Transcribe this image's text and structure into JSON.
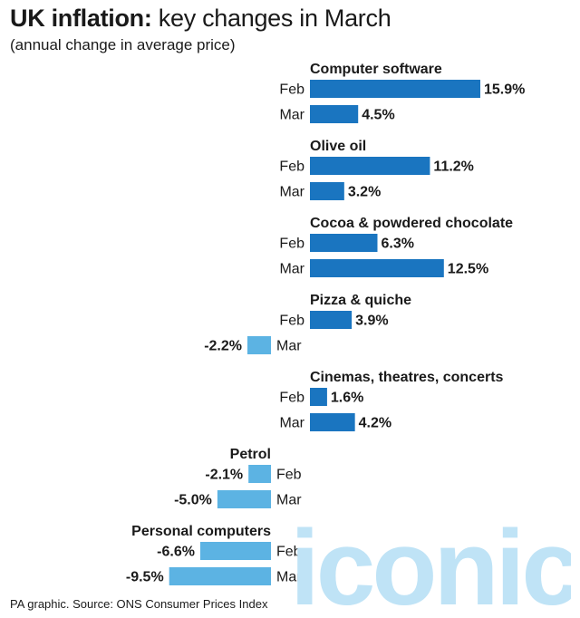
{
  "header": {
    "title_bold": "UK inflation:",
    "title_rest": " key changes in March",
    "subtitle": "(annual change in average price)"
  },
  "footer": {
    "source": "PA graphic. Source: ONS Consumer Prices Index"
  },
  "watermark": {
    "text": "iconic"
  },
  "colors": {
    "positive": "#1a75c0",
    "negative": "#5cb3e3",
    "text": "#1a1a1a",
    "watermark": "#bfe3f6"
  },
  "chart_data": {
    "type": "bar",
    "orientation": "horizontal",
    "unit": "%",
    "groups": [
      {
        "category": "Computer software",
        "bars": [
          {
            "month": "Feb",
            "value": 15.9,
            "label": "15.9%"
          },
          {
            "month": "Mar",
            "value": 4.5,
            "label": "4.5%"
          }
        ]
      },
      {
        "category": "Olive oil",
        "bars": [
          {
            "month": "Feb",
            "value": 11.2,
            "label": "11.2%"
          },
          {
            "month": "Mar",
            "value": 3.2,
            "label": "3.2%"
          }
        ]
      },
      {
        "category": "Cocoa & powdered chocolate",
        "bars": [
          {
            "month": "Feb",
            "value": 6.3,
            "label": "6.3%"
          },
          {
            "month": "Mar",
            "value": 12.5,
            "label": "12.5%"
          }
        ]
      },
      {
        "category": "Pizza & quiche",
        "bars": [
          {
            "month": "Feb",
            "value": 3.9,
            "label": "3.9%"
          },
          {
            "month": "Mar",
            "value": -2.2,
            "label": "-2.2%"
          }
        ]
      },
      {
        "category": "Cinemas, theatres, concerts",
        "bars": [
          {
            "month": "Feb",
            "value": 1.6,
            "label": "1.6%"
          },
          {
            "month": "Mar",
            "value": 4.2,
            "label": "4.2%"
          }
        ]
      },
      {
        "category": "Petrol",
        "bars": [
          {
            "month": "Feb",
            "value": -2.1,
            "label": "-2.1%"
          },
          {
            "month": "Mar",
            "value": -5.0,
            "label": "-5.0%"
          }
        ]
      },
      {
        "category": "Personal computers",
        "bars": [
          {
            "month": "Feb",
            "value": -6.6,
            "label": "-6.6%"
          },
          {
            "month": "Mar",
            "value": -9.5,
            "label": "-9.5%"
          }
        ]
      }
    ]
  }
}
